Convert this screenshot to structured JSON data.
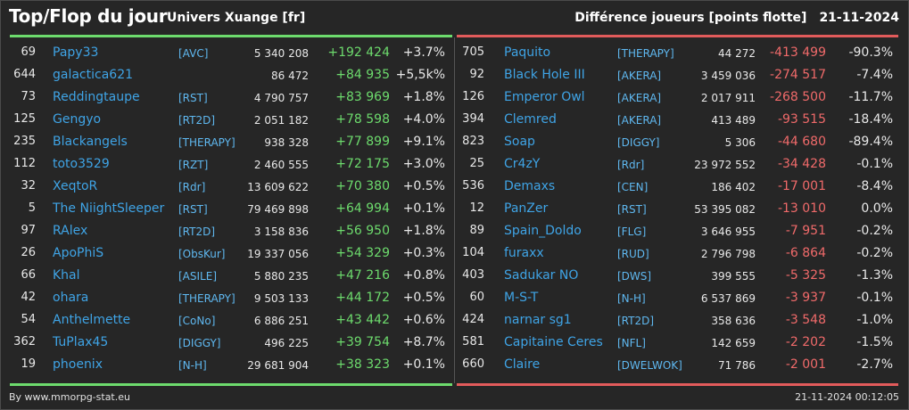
{
  "header": {
    "title": "Top/Flop du jour",
    "subtitle": "Univers Xuange [fr]",
    "metric": "Différence joueurs [points flotte]",
    "date": "21-11-2024"
  },
  "colors": {
    "background": "#262626",
    "top_accent": "#6ddb6d",
    "flop_accent": "#e25b5b",
    "player": "#3fa4e6"
  },
  "top": [
    {
      "rank": "69",
      "player": "Papy33",
      "alliance": "[AVC]",
      "points": "5 340 208",
      "diff": "+192 424",
      "pct": "+3.7%"
    },
    {
      "rank": "644",
      "player": "galactica621",
      "alliance": "",
      "points": "86 472",
      "diff": "+84 935",
      "pct": "+5,5k%"
    },
    {
      "rank": "73",
      "player": "Reddingtaupe",
      "alliance": "[RST]",
      "points": "4 790 757",
      "diff": "+83 969",
      "pct": "+1.8%"
    },
    {
      "rank": "125",
      "player": "Gengyo",
      "alliance": "[RT2D]",
      "points": "2 051 182",
      "diff": "+78 598",
      "pct": "+4.0%"
    },
    {
      "rank": "235",
      "player": "Blackangels",
      "alliance": "[THERAPY]",
      "points": "938 328",
      "diff": "+77 899",
      "pct": "+9.1%"
    },
    {
      "rank": "112",
      "player": "toto3529",
      "alliance": "[RZT]",
      "points": "2 460 555",
      "diff": "+72 175",
      "pct": "+3.0%"
    },
    {
      "rank": "32",
      "player": "XeqtoR",
      "alliance": "[Rdr]",
      "points": "13 609 622",
      "diff": "+70 380",
      "pct": "+0.5%"
    },
    {
      "rank": "5",
      "player": "The NiightSleeper",
      "alliance": "[RST]",
      "points": "79 469 898",
      "diff": "+64 994",
      "pct": "+0.1%"
    },
    {
      "rank": "97",
      "player": "RAlex",
      "alliance": "[RT2D]",
      "points": "3 158 836",
      "diff": "+56 950",
      "pct": "+1.8%"
    },
    {
      "rank": "26",
      "player": "ApoPhiS",
      "alliance": "[ObsKur]",
      "points": "19 337 056",
      "diff": "+54 329",
      "pct": "+0.3%"
    },
    {
      "rank": "66",
      "player": "Khal",
      "alliance": "[ASILE]",
      "points": "5 880 235",
      "diff": "+47 216",
      "pct": "+0.8%"
    },
    {
      "rank": "42",
      "player": "ohara",
      "alliance": "[THERAPY]",
      "points": "9 503 133",
      "diff": "+44 172",
      "pct": "+0.5%"
    },
    {
      "rank": "54",
      "player": "Anthelmette",
      "alliance": "[CoNo]",
      "points": "6 886 251",
      "diff": "+43 442",
      "pct": "+0.6%"
    },
    {
      "rank": "362",
      "player": "TuPlax45",
      "alliance": "[DIGGY]",
      "points": "496 225",
      "diff": "+39 754",
      "pct": "+8.7%"
    },
    {
      "rank": "19",
      "player": "phoenix",
      "alliance": "[N-H]",
      "points": "29 681 904",
      "diff": "+38 323",
      "pct": "+0.1%"
    }
  ],
  "flop": [
    {
      "rank": "705",
      "player": "Paquito",
      "alliance": "[THERAPY]",
      "points": "44 272",
      "diff": "-413 499",
      "pct": "-90.3%"
    },
    {
      "rank": "92",
      "player": "Black Hole III",
      "alliance": "[AKERA]",
      "points": "3 459 036",
      "diff": "-274 517",
      "pct": "-7.4%"
    },
    {
      "rank": "126",
      "player": "Emperor Owl",
      "alliance": "[AKERA]",
      "points": "2 017 911",
      "diff": "-268 500",
      "pct": "-11.7%"
    },
    {
      "rank": "394",
      "player": "Clemred",
      "alliance": "[AKERA]",
      "points": "413 489",
      "diff": "-93 515",
      "pct": "-18.4%"
    },
    {
      "rank": "823",
      "player": "Soap",
      "alliance": "[DIGGY]",
      "points": "5 306",
      "diff": "-44 680",
      "pct": "-89.4%"
    },
    {
      "rank": "25",
      "player": "Cr4zY",
      "alliance": "[Rdr]",
      "points": "23 972 552",
      "diff": "-34 428",
      "pct": "-0.1%"
    },
    {
      "rank": "536",
      "player": "Demaxs",
      "alliance": "[CEN]",
      "points": "186 402",
      "diff": "-17 001",
      "pct": "-8.4%"
    },
    {
      "rank": "12",
      "player": "PanZer",
      "alliance": "[RST]",
      "points": "53 395 082",
      "diff": "-13 010",
      "pct": "0.0%"
    },
    {
      "rank": "89",
      "player": "Spain_Doldo",
      "alliance": "[FLG]",
      "points": "3 646 955",
      "diff": "-7 951",
      "pct": "-0.2%"
    },
    {
      "rank": "104",
      "player": "furaxx",
      "alliance": "[RUD]",
      "points": "2 796 798",
      "diff": "-6 864",
      "pct": "-0.2%"
    },
    {
      "rank": "403",
      "player": "Sadukar NO",
      "alliance": "[DWS]",
      "points": "399 555",
      "diff": "-5 325",
      "pct": "-1.3%"
    },
    {
      "rank": "60",
      "player": "M-S-T",
      "alliance": "[N-H]",
      "points": "6 537 869",
      "diff": "-3 937",
      "pct": "-0.1%"
    },
    {
      "rank": "424",
      "player": "narnar sg1",
      "alliance": "[RT2D]",
      "points": "358 636",
      "diff": "-3 548",
      "pct": "-1.0%"
    },
    {
      "rank": "581",
      "player": "Capitaine Ceres",
      "alliance": "[NFL]",
      "points": "142 659",
      "diff": "-2 202",
      "pct": "-1.5%"
    },
    {
      "rank": "660",
      "player": "Claire",
      "alliance": "[DWELWOK]",
      "points": "71 786",
      "diff": "-2 001",
      "pct": "-2.7%"
    }
  ],
  "footer": {
    "credit": "By www.mmorpg-stat.eu",
    "timestamp": "21-11-2024 00:12:05"
  }
}
